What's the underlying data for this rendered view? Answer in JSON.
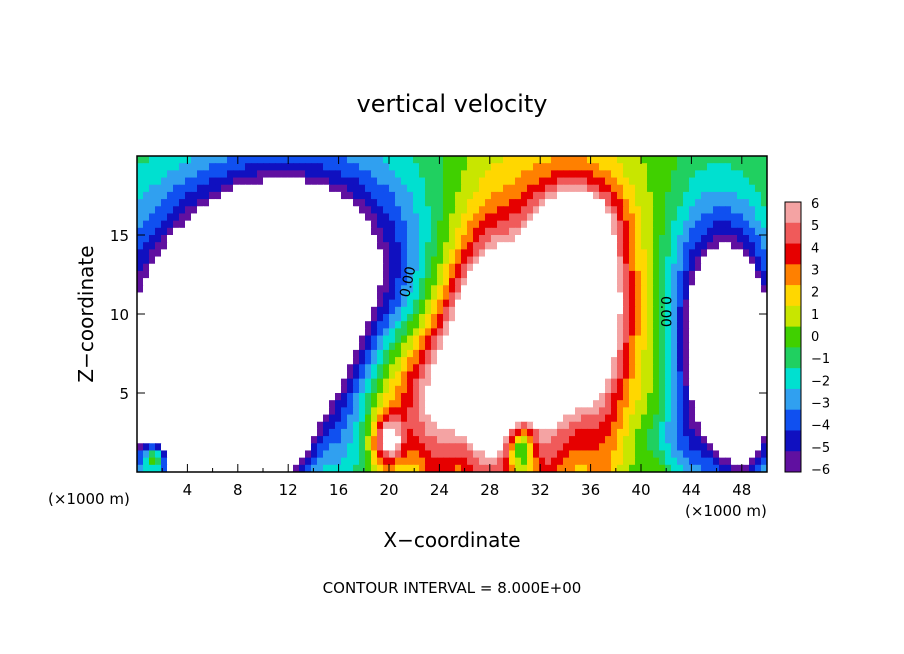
{
  "chart_data": {
    "type": "heatmap",
    "title": "vertical velocity",
    "xlabel": "X−coordinate",
    "ylabel": "Z−coordinate",
    "x_unit_left": "(×1000 m)",
    "x_unit_right": "(×1000 m)",
    "xlim": [
      0,
      50
    ],
    "ylim": [
      0,
      20
    ],
    "x_ticks": [
      4,
      8,
      12,
      16,
      20,
      24,
      28,
      32,
      36,
      40,
      44,
      48
    ],
    "x_tick_labels": [
      "4",
      "8",
      "12",
      "16",
      "20",
      "24",
      "28",
      "32",
      "36",
      "40",
      "44",
      "48"
    ],
    "y_ticks": [
      5,
      10,
      15
    ],
    "y_tick_labels": [
      "5",
      "10",
      "15"
    ],
    "footer": "CONTOUR INTERVAL = 8.000E+00",
    "contour_labels": [
      "0.00",
      "0.00"
    ],
    "colorbar": {
      "levels": [
        "6",
        "5",
        "4",
        "3",
        "2",
        "1",
        "0",
        "−1",
        "−2",
        "−3",
        "−4",
        "−5",
        "−6"
      ],
      "colors": [
        "#f4a3a3",
        "#f05a5a",
        "#e60000",
        "#ff8000",
        "#ffd700",
        "#c8e600",
        "#40d000",
        "#20d060",
        "#00e0d0",
        "#30a0f0",
        "#1050f0",
        "#1010c0",
        "#6010a0"
      ]
    },
    "field_blobs": [
      {
        "x": 15,
        "z": 11,
        "rx": 15,
        "rz": 9,
        "w": -4.5
      },
      {
        "x": 5,
        "z": 6,
        "rx": 6,
        "rz": 7,
        "w": -5
      },
      {
        "x": 11,
        "z": 13,
        "rx": 6,
        "rz": 5,
        "w": -4
      },
      {
        "x": 10,
        "z": 5,
        "rx": 4,
        "rz": 5,
        "w": -5.5
      },
      {
        "x": 3,
        "z": 2,
        "rx": 3,
        "rz": 2,
        "w": -3
      },
      {
        "x": 46,
        "z": 9,
        "rx": 4,
        "rz": 8,
        "w": -4.5
      },
      {
        "x": 48,
        "z": 6,
        "rx": 3,
        "rz": 6,
        "w": -5
      },
      {
        "x": 30,
        "z": 9,
        "rx": 9,
        "rz": 10,
        "w": 4.5
      },
      {
        "x": 28,
        "z": 8,
        "rx": 3.5,
        "rz": 6,
        "w": 5
      },
      {
        "x": 35,
        "z": 11,
        "rx": 3.5,
        "rz": 6,
        "w": 5
      },
      {
        "x": 22,
        "z": 5,
        "rx": 4,
        "rz": 5,
        "w": 3
      },
      {
        "x": 35,
        "z": 16,
        "rx": 3,
        "rz": 2,
        "w": 2
      },
      {
        "x": 20,
        "z": 2,
        "rx": 1.2,
        "rz": 1.5,
        "w": 3
      },
      {
        "x": 1.5,
        "z": 1,
        "rx": 1,
        "rz": 1,
        "w": 4
      },
      {
        "x": 30.5,
        "z": 1.5,
        "rx": 1,
        "rz": 1.5,
        "w": -3
      },
      {
        "x": 42,
        "z": 2,
        "rx": 2,
        "rz": 2,
        "w": -1
      }
    ]
  }
}
